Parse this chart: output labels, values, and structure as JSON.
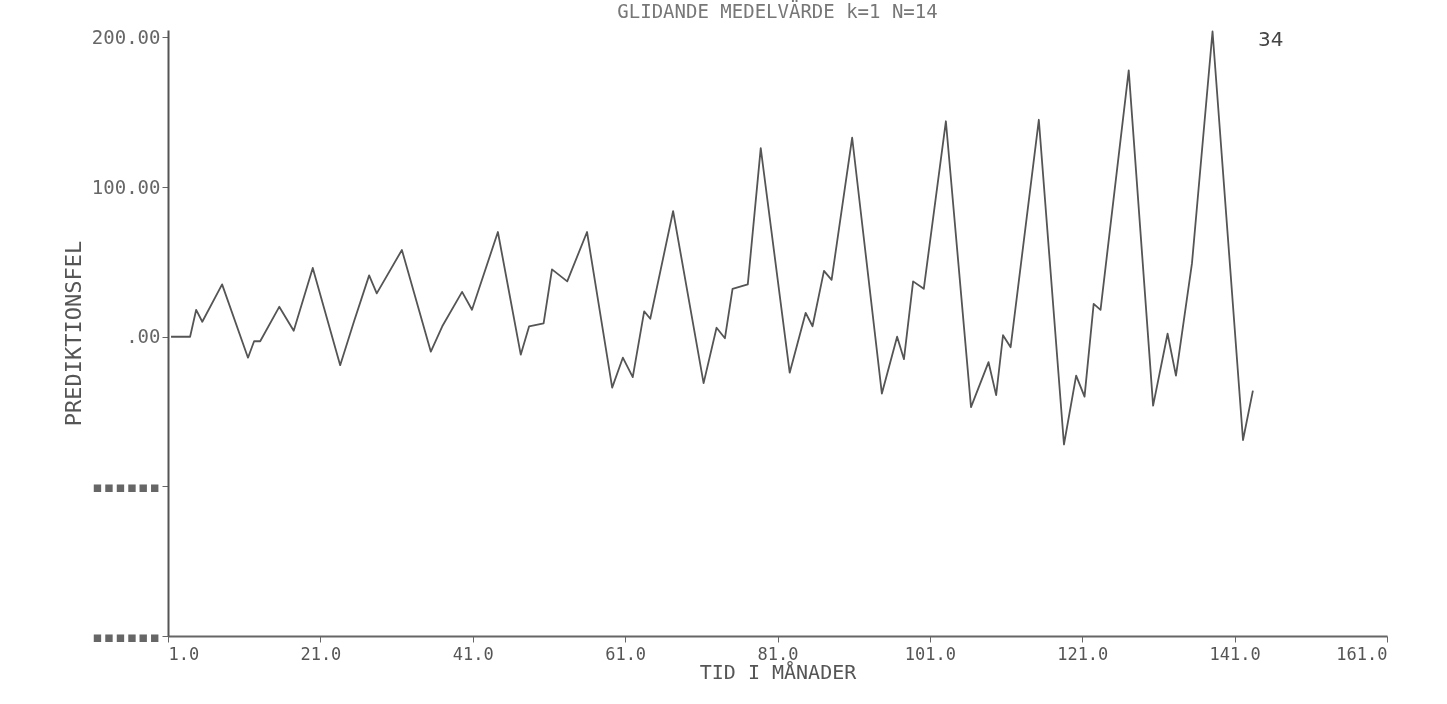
{
  "chart_data": {
    "type": "line",
    "title": "GLIDANDE MEDELVÄRDE k=1 N=14",
    "xlabel": "TID I MÅNADER",
    "ylabel": "PREDIKTIONSFEL",
    "annotations": [
      "34"
    ],
    "xlim": [
      1,
      161
    ],
    "xticks": [
      {
        "value": 1,
        "label": "1.0"
      },
      {
        "value": 21,
        "label": "21.0"
      },
      {
        "value": 41,
        "label": "41.0"
      },
      {
        "value": 61,
        "label": "61.0"
      },
      {
        "value": 81,
        "label": "81.0"
      },
      {
        "value": 101,
        "label": "101.0"
      },
      {
        "value": 121,
        "label": "121.0"
      },
      {
        "value": 141,
        "label": "141.0"
      },
      {
        "value": 161,
        "label": "161.0"
      }
    ],
    "ylim": [
      -200,
      205
    ],
    "yticks": [
      {
        "value": -200,
        "label": "▪▪▪▪▪▪"
      },
      {
        "value": -100,
        "label": "▪▪▪▪▪▪"
      },
      {
        "value": 0,
        "label": ".00"
      },
      {
        "value": 100,
        "label": "100.00"
      },
      {
        "value": 200,
        "label": "200.00"
      }
    ],
    "grid": false,
    "series": [
      {
        "color": "#555555",
        "x": [
          1.4,
          3.9,
          4.7,
          5.5,
          8.1,
          11.5,
          12.3,
          13.1,
          15.6,
          17.5,
          20,
          23.6,
          25.4,
          27.4,
          28.4,
          31.7,
          35.5,
          37,
          39.6,
          40.9,
          44.3,
          47.3,
          48.4,
          50.3,
          51.4,
          53.4,
          56,
          59.3,
          60.7,
          62,
          63.5,
          64.3,
          67.3,
          71.3,
          73,
          74.1,
          75.1,
          77.1,
          78.8,
          82.6,
          84.7,
          85.6,
          87.1,
          88.1,
          90.8,
          94.7,
          96.7,
          97.6,
          98.8,
          100.2,
          103.1,
          106.4,
          108.7,
          109.7,
          110.6,
          111.6,
          115.3,
          118.6,
          120.2,
          121.3,
          122.5,
          123.4,
          127.1,
          130.3,
          132.2,
          133.3,
          135.4,
          138.1,
          142.1,
          143.4
        ],
        "values": [
          0,
          0,
          18,
          10,
          35,
          -14,
          -3,
          -3,
          20,
          4,
          46,
          -19,
          10,
          41,
          29,
          58,
          -10,
          7,
          30,
          18,
          70,
          -12,
          7,
          9,
          45,
          37,
          70,
          -34,
          -14,
          -27,
          17,
          12,
          84,
          -31,
          6,
          -1,
          32,
          35,
          126,
          -24,
          16,
          7,
          44,
          38,
          133,
          -38,
          0,
          -15,
          37,
          32,
          144,
          -47,
          -17,
          -39,
          1,
          -7,
          145,
          -72,
          -26,
          -40,
          22,
          18,
          178,
          -46,
          2,
          -26,
          49,
          204,
          -69,
          -36
        ]
      }
    ]
  }
}
